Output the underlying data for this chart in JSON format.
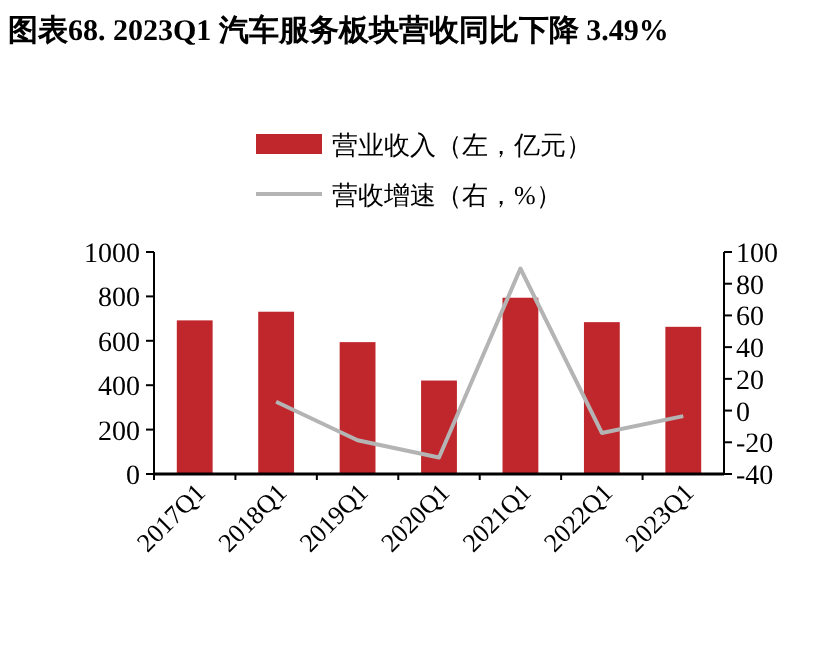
{
  "chart_data": {
    "type": "bar",
    "title": "图表68. 2023Q1 汽车服务板块营收同比下降 3.49%",
    "categories": [
      "2017Q1",
      "2018Q1",
      "2019Q1",
      "2020Q1",
      "2021Q1",
      "2022Q1",
      "2023Q1"
    ],
    "series": [
      {
        "name": "营业收入（左，亿元）",
        "color": "#c0272d",
        "values": [
          692,
          731,
          594,
          421,
          794,
          684,
          663
        ]
      },
      {
        "name": "营收增速（右，%）",
        "color": "#b4b4b4",
        "type": "line",
        "axis": "y2",
        "values": [
          null,
          5.6,
          -18.7,
          -29.6,
          89.6,
          -14.1,
          -3.5
        ]
      }
    ],
    "ylim": [
      0,
      1000
    ],
    "yticks": [
      0,
      200,
      400,
      600,
      800,
      1000
    ],
    "y2lim": [
      -40,
      100
    ],
    "y2ticks": [
      -40,
      -20,
      0,
      20,
      40,
      60,
      80,
      100
    ],
    "legend": "top",
    "grid": false
  }
}
